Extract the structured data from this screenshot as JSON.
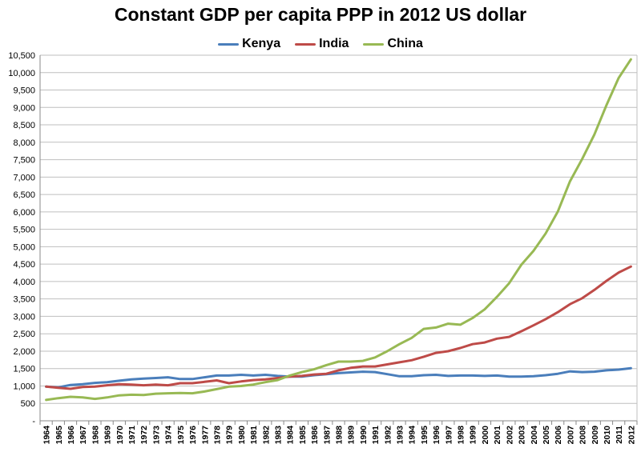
{
  "chart_data": {
    "type": "line",
    "title": "Constant GDP per capita PPP in 2012 US dollar",
    "xlabel": "",
    "ylabel": "",
    "ylim": [
      0,
      10500
    ],
    "grid": true,
    "legend_position": "top",
    "yticks": [
      "-",
      "500",
      "1,000",
      "1,500",
      "2,000",
      "2,500",
      "3,000",
      "3,500",
      "4,000",
      "4,500",
      "5,000",
      "5,500",
      "6,000",
      "6,500",
      "7,000",
      "7,500",
      "8,000",
      "8,500",
      "9,000",
      "9,500",
      "10,000",
      "10,500"
    ],
    "x": [
      "1964",
      "1965",
      "1966",
      "1967",
      "1968",
      "1969",
      "1970",
      "1971",
      "1972",
      "1973",
      "1974",
      "1975",
      "1976",
      "1977",
      "1978",
      "1979",
      "1980",
      "1981",
      "1982",
      "1983",
      "1984",
      "1985",
      "1986",
      "1987",
      "1988",
      "1989",
      "1990",
      "1991",
      "1992",
      "1993",
      "1994",
      "1995",
      "1996",
      "1997",
      "1998",
      "1999",
      "2000",
      "2001",
      "2002",
      "2003",
      "2004",
      "2005",
      "2006",
      "2007",
      "2008",
      "2009",
      "2010",
      "2011",
      "2012"
    ],
    "series": [
      {
        "name": "Kenya",
        "color": "#4a7ebb",
        "values": [
          980,
          960,
          1030,
          1050,
          1090,
          1110,
          1150,
          1190,
          1210,
          1230,
          1250,
          1200,
          1200,
          1250,
          1300,
          1300,
          1320,
          1300,
          1320,
          1290,
          1270,
          1270,
          1310,
          1340,
          1370,
          1390,
          1410,
          1400,
          1340,
          1280,
          1280,
          1310,
          1320,
          1290,
          1300,
          1300,
          1290,
          1300,
          1270,
          1270,
          1280,
          1310,
          1350,
          1420,
          1400,
          1410,
          1450,
          1470,
          1510
        ]
      },
      {
        "name": "India",
        "color": "#be4b48",
        "values": [
          980,
          950,
          920,
          970,
          980,
          1020,
          1050,
          1040,
          1020,
          1040,
          1020,
          1080,
          1080,
          1120,
          1160,
          1080,
          1130,
          1170,
          1190,
          1230,
          1270,
          1290,
          1330,
          1350,
          1450,
          1520,
          1560,
          1560,
          1620,
          1680,
          1740,
          1840,
          1950,
          2000,
          2090,
          2200,
          2250,
          2360,
          2410,
          2570,
          2740,
          2920,
          3120,
          3350,
          3520,
          3760,
          4020,
          4260,
          4430
        ]
      },
      {
        "name": "China",
        "color": "#98b954",
        "values": [
          600,
          650,
          690,
          670,
          630,
          670,
          730,
          750,
          740,
          780,
          790,
          800,
          790,
          840,
          910,
          980,
          1000,
          1040,
          1110,
          1170,
          1300,
          1400,
          1480,
          1600,
          1700,
          1700,
          1720,
          1820,
          2000,
          2200,
          2380,
          2640,
          2680,
          2790,
          2760,
          2950,
          3200,
          3560,
          3950,
          4480,
          4880,
          5380,
          6010,
          6880,
          7520,
          8220,
          9070,
          9850,
          10380
        ]
      }
    ]
  }
}
